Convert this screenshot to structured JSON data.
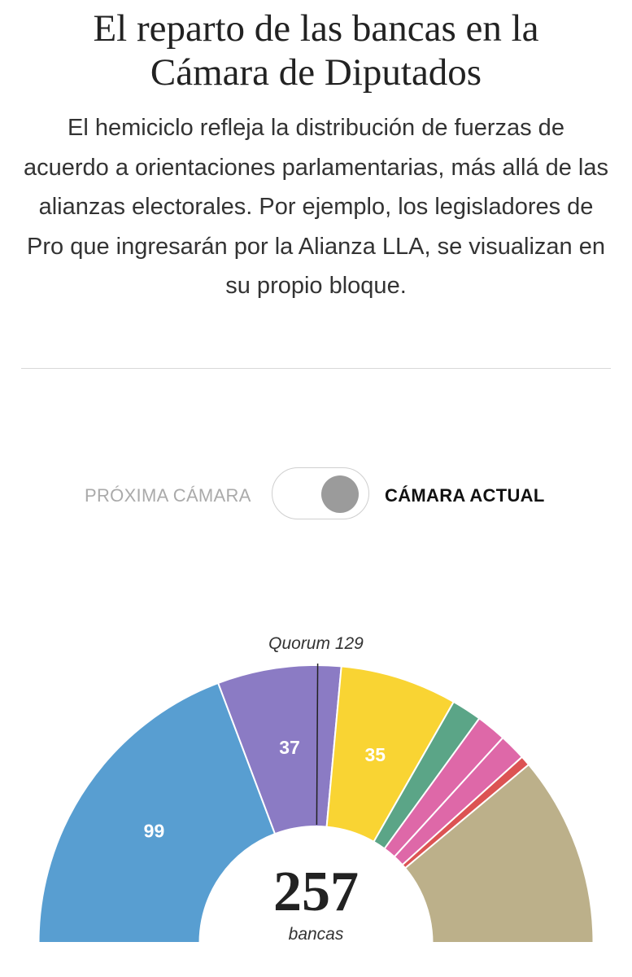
{
  "header": {
    "title_line1": "El reparto de las bancas en la",
    "title_line2": "Cámara de Diputados",
    "subtitle": "El hemiciclo refleja la distribución de fuerzas de acuerdo a orientaciones parlamentarias, más allá de las alianzas electorales. Por ejemplo, los legisladores de Pro que ingresarán por la Alianza LLA, se visualizan en su propio bloque."
  },
  "toggle": {
    "left_label": "PRÓXIMA CÁMARA",
    "right_label": "CÁMARA ACTUAL",
    "selected": "CÁMARA ACTUAL"
  },
  "chart_data": {
    "type": "pie",
    "layout": "semicircle",
    "total": 257,
    "total_label": "bancas",
    "quorum": 129,
    "quorum_label": "Quorum 129",
    "series": [
      {
        "value": 99,
        "color": "#589ed1",
        "label": "99"
      },
      {
        "value": 37,
        "color": "#8b7bc4",
        "label": "37"
      },
      {
        "value": 35,
        "color": "#f9d433",
        "label": "35"
      },
      {
        "value": 9,
        "color": "#5ba587",
        "label": ""
      },
      {
        "value": 9,
        "color": "#de68a8",
        "label": ""
      },
      {
        "value": 8,
        "color": "#de68a8",
        "label": ""
      },
      {
        "value": 3,
        "color": "#dc5353",
        "label": ""
      },
      {
        "value": 57,
        "color": "#bcb08a",
        "label": ""
      }
    ]
  }
}
